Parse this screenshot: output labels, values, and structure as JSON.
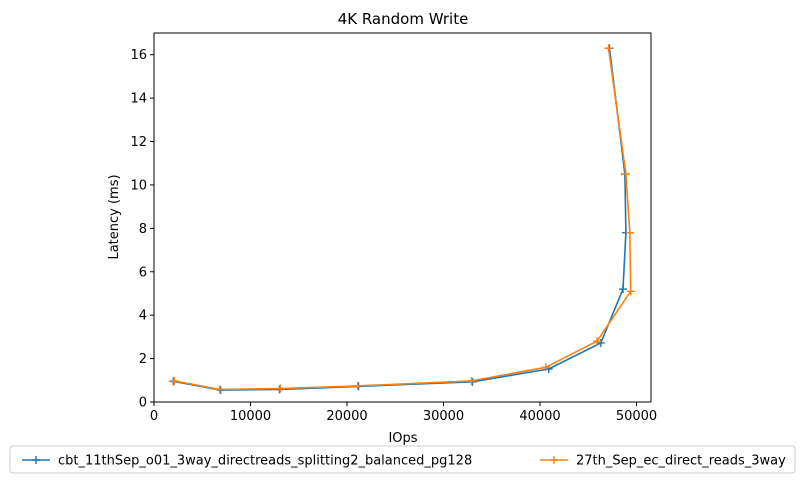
{
  "chart_data": {
    "type": "line",
    "title": "4K  Random Write",
    "xlabel": "IOps",
    "ylabel": "Latency (ms)",
    "xlim": [
      0,
      51500
    ],
    "ylim": [
      0,
      17
    ],
    "xticks": [
      0,
      10000,
      20000,
      30000,
      40000,
      50000
    ],
    "yticks": [
      0,
      2,
      4,
      6,
      8,
      10,
      12,
      14,
      16
    ],
    "grid": false,
    "legend_position": "bottom",
    "series": [
      {
        "name": "cbt_11thSep_o01_3way_directreads_splitting2_balanced_pg128",
        "color": "#1f77b4",
        "x": [
          2000,
          6900,
          13000,
          21200,
          33000,
          40900,
          46300,
          48600,
          48900,
          48800,
          47200
        ],
        "y": [
          0.95,
          0.55,
          0.58,
          0.72,
          0.93,
          1.52,
          2.72,
          5.2,
          7.8,
          10.5,
          16.3
        ]
      },
      {
        "name": "27th_Sep_ec_direct_reads_3way",
        "color": "#ff7f0e",
        "x": [
          2100,
          6800,
          13100,
          21100,
          32900,
          40600,
          45900,
          49400,
          49300,
          48900,
          47100
        ],
        "y": [
          0.97,
          0.58,
          0.62,
          0.74,
          0.97,
          1.6,
          2.8,
          5.1,
          7.8,
          10.5,
          16.3
        ]
      }
    ]
  }
}
